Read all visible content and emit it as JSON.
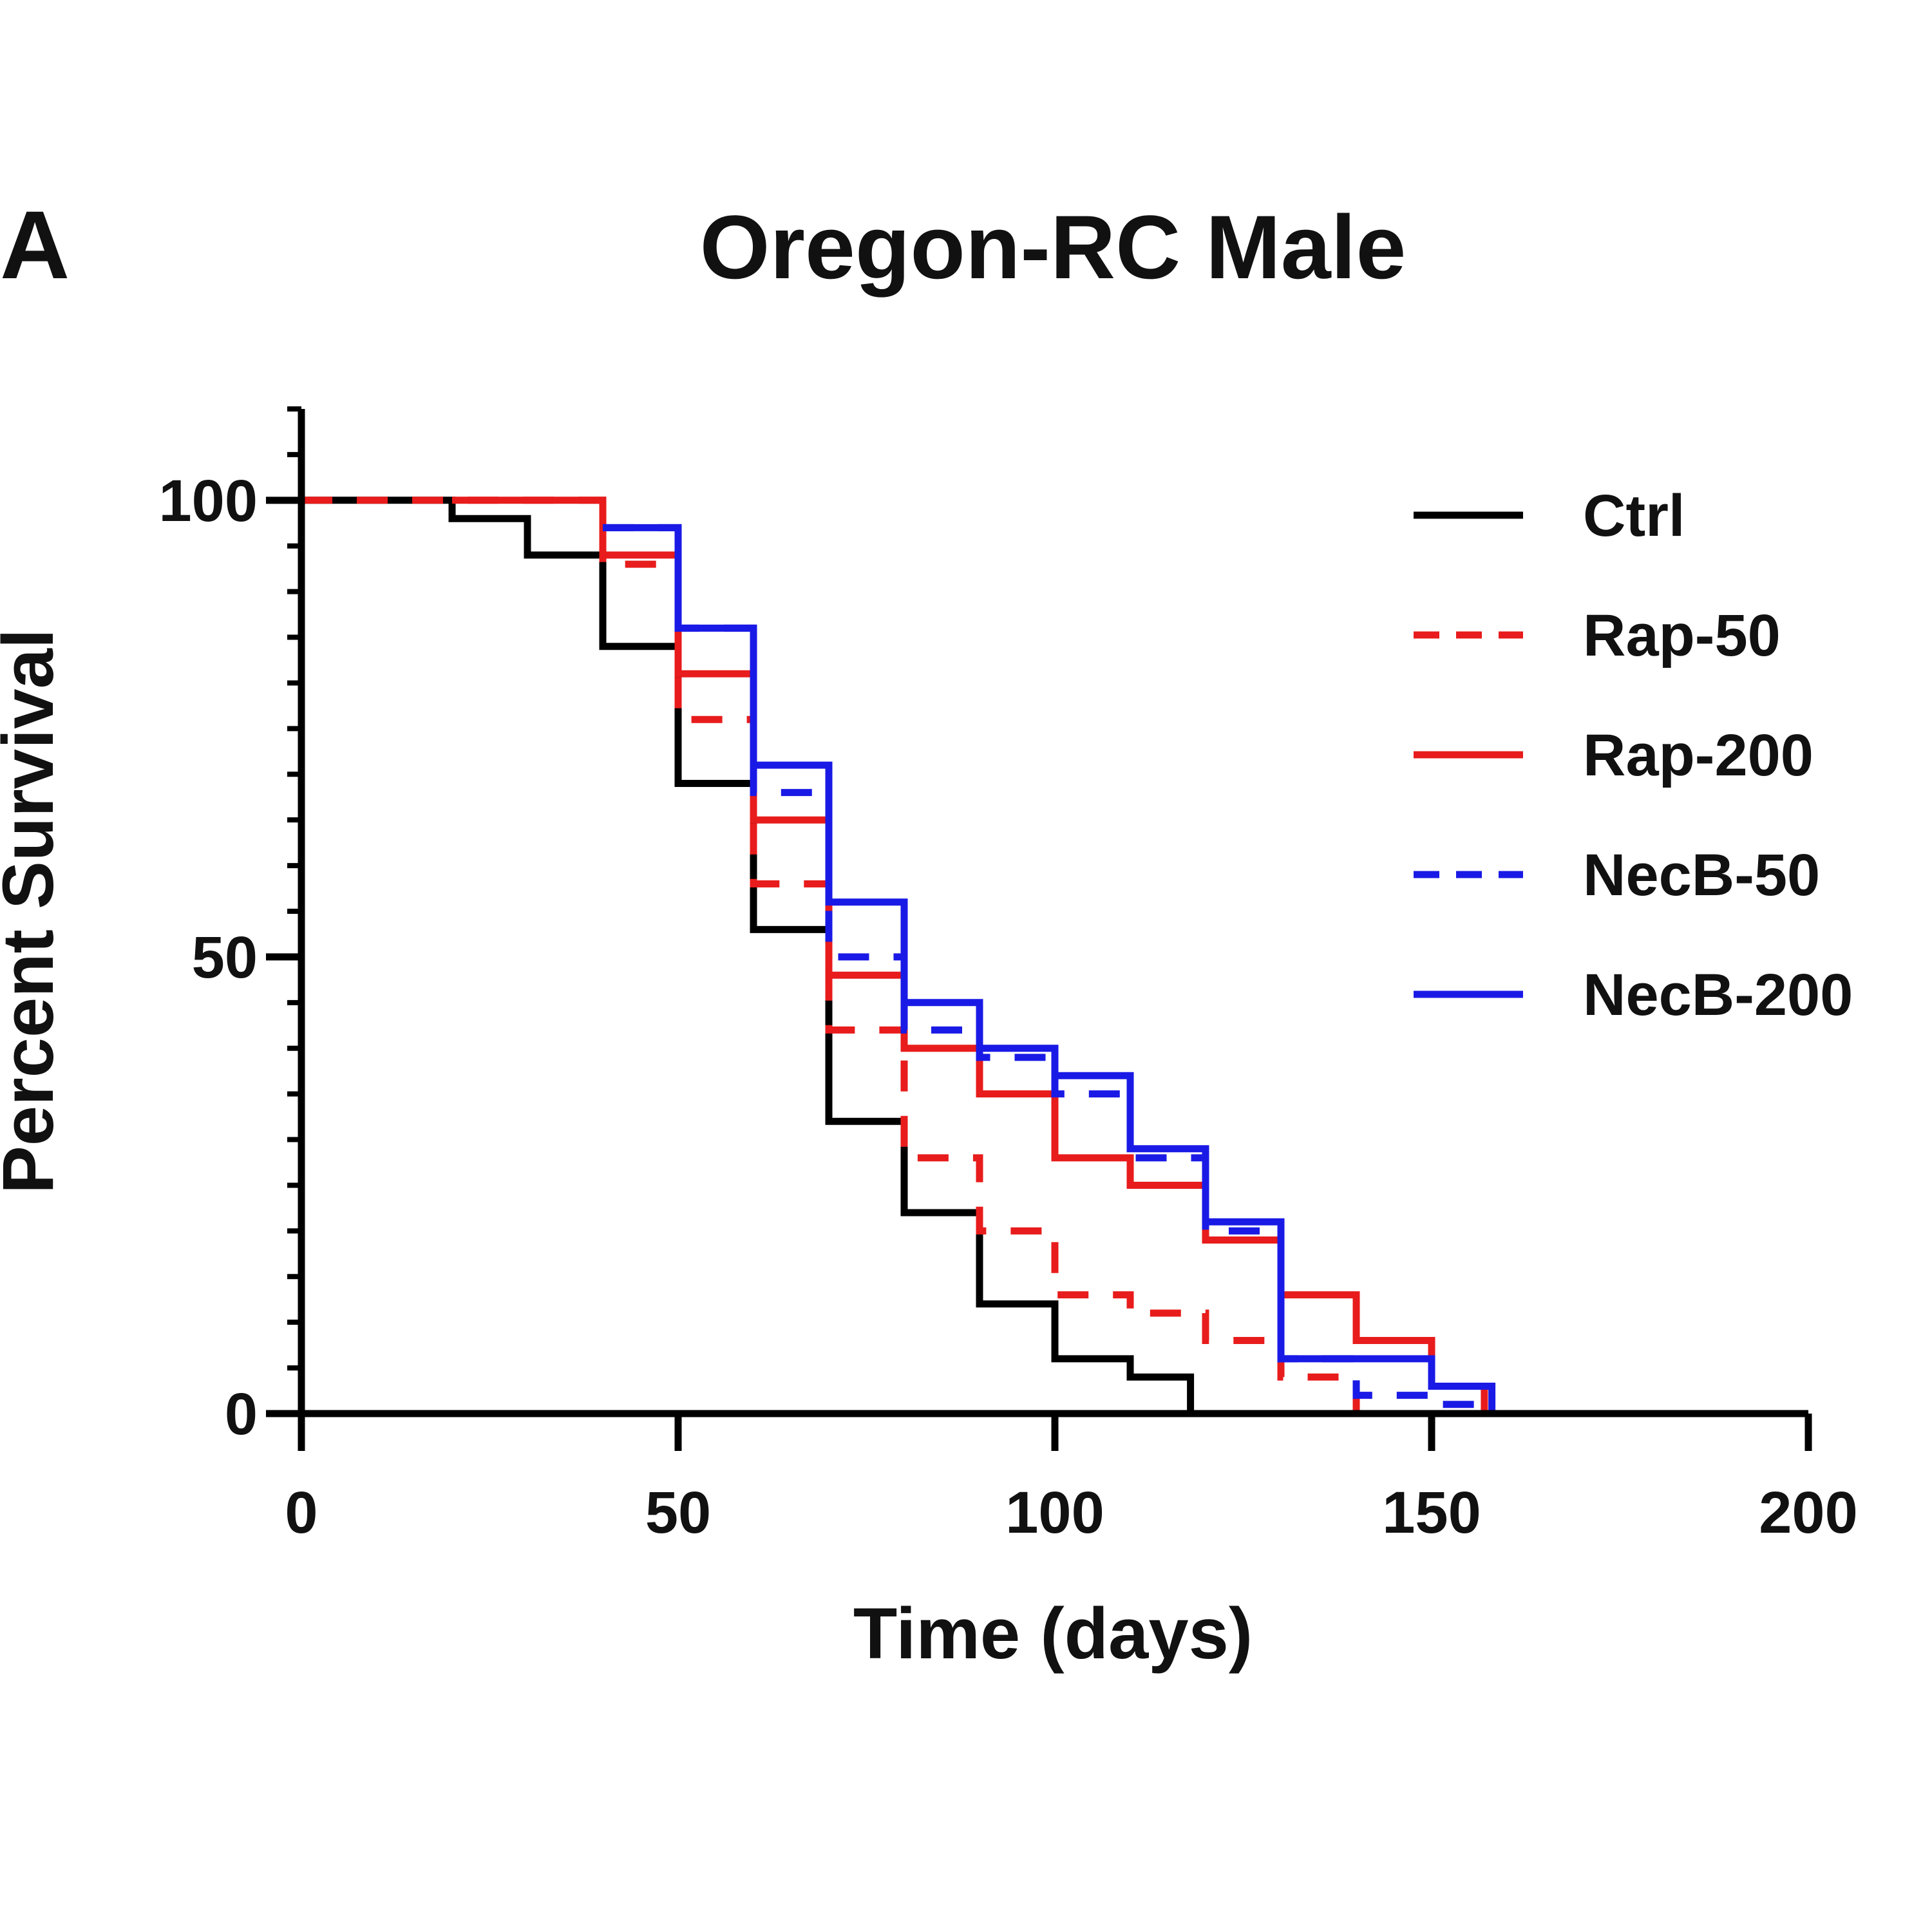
{
  "chart_data": {
    "type": "line",
    "step": true,
    "panel_label": "A",
    "title": "Oregon-RC  Male",
    "xlabel": "Time (days)",
    "ylabel": "Percent Survival",
    "xlim": [
      0,
      200
    ],
    "ylim": [
      0,
      110
    ],
    "xticks": [
      0,
      50,
      100,
      150,
      200
    ],
    "xtick_labels": [
      "0",
      "50",
      "100",
      "150",
      "200"
    ],
    "yticks": [
      0,
      50,
      100
    ],
    "ytick_labels": [
      "0",
      "50",
      "100"
    ],
    "y_minor_tick_step": 5,
    "legend_position": "top-right",
    "series": [
      {
        "name": "Ctrl",
        "color": "#000000",
        "dash": "solid",
        "x": [
          0,
          20,
          20,
          30,
          30,
          40,
          40,
          50,
          50,
          60,
          60,
          70,
          70,
          80,
          80,
          90,
          90,
          100,
          100,
          110,
          110,
          118,
          118
        ],
        "y": [
          100,
          100,
          98,
          98,
          94,
          94,
          84,
          84,
          69,
          69,
          53,
          53,
          32,
          32,
          22,
          22,
          12,
          12,
          6,
          6,
          4,
          4,
          0
        ]
      },
      {
        "name": "Rap-50",
        "color": "#e81c1c",
        "dash": "dashed",
        "x": [
          0,
          40,
          40,
          50,
          50,
          60,
          60,
          70,
          70,
          80,
          80,
          90,
          90,
          100,
          100,
          110,
          110,
          120,
          120,
          130,
          130,
          140,
          140
        ],
        "y": [
          100,
          100,
          93,
          93,
          76,
          76,
          58,
          58,
          42,
          42,
          28,
          28,
          20,
          20,
          13,
          13,
          11,
          11,
          8,
          8,
          4,
          4,
          0
        ]
      },
      {
        "name": "Rap-200",
        "color": "#e81c1c",
        "dash": "solid",
        "x": [
          20,
          40,
          40,
          50,
          50,
          60,
          60,
          70,
          70,
          80,
          80,
          90,
          90,
          100,
          100,
          110,
          110,
          120,
          120,
          130,
          130,
          140,
          140,
          150,
          150,
          157,
          157
        ],
        "y": [
          100,
          100,
          94,
          94,
          81,
          81,
          65,
          65,
          48,
          48,
          40,
          40,
          35,
          35,
          28,
          28,
          25,
          25,
          19,
          19,
          13,
          13,
          8,
          8,
          3,
          3,
          0
        ]
      },
      {
        "name": "NecB-50",
        "color": "#1a1ae6",
        "dash": "dashed",
        "x": [
          40,
          50,
          50,
          60,
          60,
          70,
          70,
          80,
          80,
          90,
          90,
          100,
          100,
          110,
          110,
          120,
          120,
          130,
          130,
          140,
          140,
          150,
          150,
          157,
          157
        ],
        "y": [
          97,
          97,
          86,
          86,
          68,
          68,
          50,
          50,
          42,
          42,
          39,
          39,
          35,
          35,
          28,
          28,
          20,
          20,
          6,
          6,
          2,
          2,
          1,
          1,
          0
        ]
      },
      {
        "name": "NecB-200",
        "color": "#1a1ae6",
        "dash": "solid",
        "x": [
          40,
          50,
          50,
          60,
          60,
          70,
          70,
          80,
          80,
          90,
          90,
          100,
          100,
          110,
          110,
          120,
          120,
          130,
          130,
          140,
          140,
          150,
          150,
          158,
          158
        ],
        "y": [
          97,
          97,
          86,
          86,
          71,
          71,
          56,
          56,
          45,
          45,
          40,
          40,
          37,
          37,
          29,
          29,
          21,
          21,
          6,
          6,
          6,
          6,
          3,
          3,
          0
        ]
      }
    ]
  }
}
